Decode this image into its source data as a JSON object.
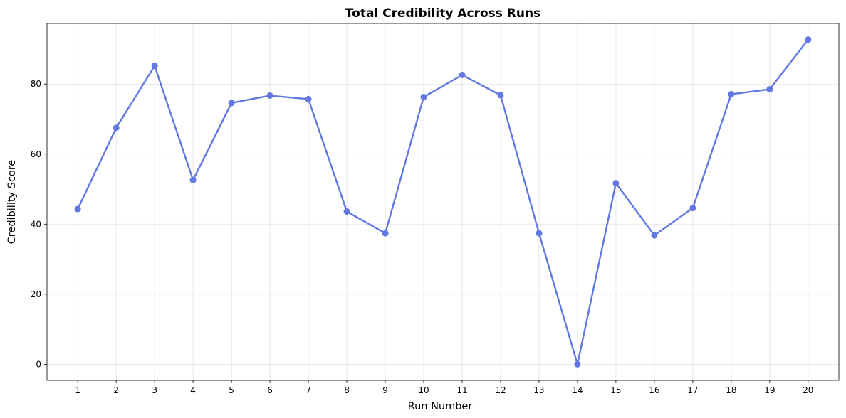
{
  "chart_data": {
    "type": "line",
    "title": "Total Credibility Across Runs",
    "xlabel": "Run Number",
    "ylabel": "Credibility Score",
    "x": [
      1,
      2,
      3,
      4,
      5,
      6,
      7,
      8,
      9,
      10,
      11,
      12,
      13,
      14,
      15,
      16,
      17,
      18,
      19,
      20
    ],
    "series": [
      {
        "values": [
          44.3,
          67.5,
          85.2,
          52.6,
          74.6,
          76.7,
          75.7,
          43.6,
          37.4,
          76.3,
          82.6,
          76.8,
          37.4,
          0.0,
          51.7,
          36.8,
          44.6,
          77.1,
          78.5,
          92.7
        ],
        "color": "#6178e3"
      }
    ],
    "xlim": [
      0.2,
      20.8
    ],
    "ylim": [
      -4.6,
      97.3
    ],
    "yticks": [
      0,
      20,
      40,
      60,
      80
    ],
    "xticks": [
      1,
      2,
      3,
      4,
      5,
      6,
      7,
      8,
      9,
      10,
      11,
      12,
      13,
      14,
      15,
      16,
      17,
      18,
      19,
      20
    ],
    "grid": true,
    "legend": "none"
  }
}
